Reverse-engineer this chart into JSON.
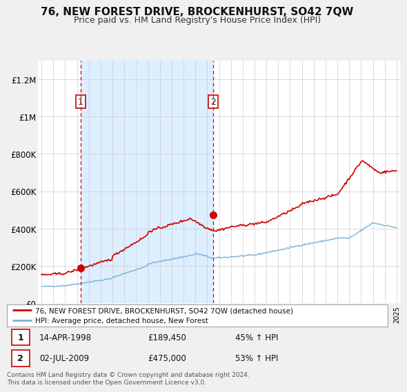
{
  "title": "76, NEW FOREST DRIVE, BROCKENHURST, SO42 7QW",
  "subtitle": "Price paid vs. HM Land Registry's House Price Index (HPI)",
  "title_fontsize": 11,
  "subtitle_fontsize": 9,
  "ylabel_ticks": [
    "£0",
    "£200K",
    "£400K",
    "£600K",
    "£800K",
    "£1M",
    "£1.2M"
  ],
  "ytick_values": [
    0,
    200000,
    400000,
    600000,
    800000,
    1000000,
    1200000
  ],
  "ylim": [
    0,
    1300000
  ],
  "x_start_year": 1995,
  "x_end_year": 2025,
  "property_color": "#cc0000",
  "hpi_color": "#7ab0d4",
  "vline_color": "#cc0000",
  "shade_color": "#ddeeff",
  "sale1_year": 1998.29,
  "sale1_value": 189450,
  "sale1_label": "1",
  "sale1_date": "14-APR-1998",
  "sale1_price": "£189,450",
  "sale1_hpi": "45% ↑ HPI",
  "sale2_year": 2009.5,
  "sale2_value": 475000,
  "sale2_label": "2",
  "sale2_date": "02-JUL-2009",
  "sale2_price": "£475,000",
  "sale2_hpi": "53% ↑ HPI",
  "legend_label1": "76, NEW FOREST DRIVE, BROCKENHURST, SO42 7QW (detached house)",
  "legend_label2": "HPI: Average price, detached house, New Forest",
  "footer": "Contains HM Land Registry data © Crown copyright and database right 2024.\nThis data is licensed under the Open Government Licence v3.0.",
  "background_color": "#f0f0f0",
  "plot_bg_color": "#ffffff"
}
